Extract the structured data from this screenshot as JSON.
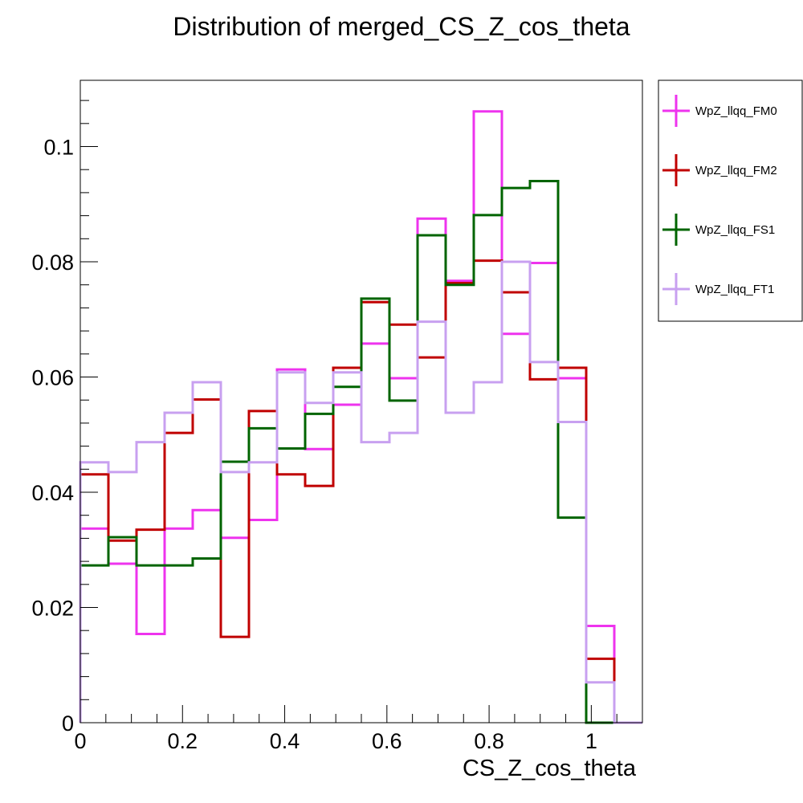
{
  "chart_data": {
    "type": "step-histogram",
    "title": "Distribution of merged_CS_Z_cos_theta",
    "xlabel": "CS_Z_cos_theta",
    "ylabel": "",
    "xlim": [
      0,
      1.1
    ],
    "ylim": [
      0,
      0.1115
    ],
    "x_ticks": [
      0,
      0.2,
      0.4,
      0.6,
      0.8,
      1
    ],
    "x_tick_labels": [
      "0",
      "0.2",
      "0.4",
      "0.6",
      "0.8",
      "1"
    ],
    "y_ticks": [
      0,
      0.02,
      0.04,
      0.06,
      0.08,
      0.1
    ],
    "y_tick_labels": [
      "0",
      "0.02",
      "0.04",
      "0.06",
      "0.08",
      "0.1"
    ],
    "bin_edges": [
      0,
      0.055,
      0.11,
      0.165,
      0.22,
      0.275,
      0.33,
      0.385,
      0.44,
      0.495,
      0.55,
      0.605,
      0.66,
      0.715,
      0.77,
      0.825,
      0.88,
      0.935,
      0.99,
      1.045,
      1.1
    ],
    "grid": false,
    "legend_position": "right, outside plot",
    "series": [
      {
        "name": "WpZ_llqq_FM0",
        "color": "#ee33ee",
        "values": [
          0.0337,
          0.0276,
          0.0154,
          0.0337,
          0.0369,
          0.0321,
          0.0352,
          0.0613,
          0.0475,
          0.0552,
          0.0658,
          0.0598,
          0.0875,
          0.0767,
          0.1061,
          0.0675,
          0.0798,
          0.0598,
          0.0168,
          0.0
        ]
      },
      {
        "name": "WpZ_llqq_FM2",
        "color": "#c00000",
        "values": [
          0.0431,
          0.0316,
          0.0335,
          0.0503,
          0.0561,
          0.0149,
          0.0541,
          0.0431,
          0.0411,
          0.0616,
          0.073,
          0.0691,
          0.0634,
          0.0763,
          0.0802,
          0.0747,
          0.0596,
          0.0616,
          0.0111,
          0.0
        ]
      },
      {
        "name": "WpZ_llqq_FS1",
        "color": "#006400",
        "values": [
          0.0273,
          0.0322,
          0.0273,
          0.0273,
          0.0285,
          0.0453,
          0.0511,
          0.0476,
          0.0536,
          0.0583,
          0.0736,
          0.0559,
          0.0846,
          0.076,
          0.0881,
          0.0928,
          0.094,
          0.0356,
          0.0,
          0.0
        ]
      },
      {
        "name": "WpZ_llqq_FT1",
        "color": "#c8a0f0",
        "values": [
          0.0452,
          0.0435,
          0.0487,
          0.0538,
          0.0591,
          0.0435,
          0.0452,
          0.0608,
          0.0555,
          0.0608,
          0.0487,
          0.0503,
          0.0696,
          0.0538,
          0.0591,
          0.08,
          0.0626,
          0.0522,
          0.007,
          0.0
        ]
      }
    ]
  }
}
